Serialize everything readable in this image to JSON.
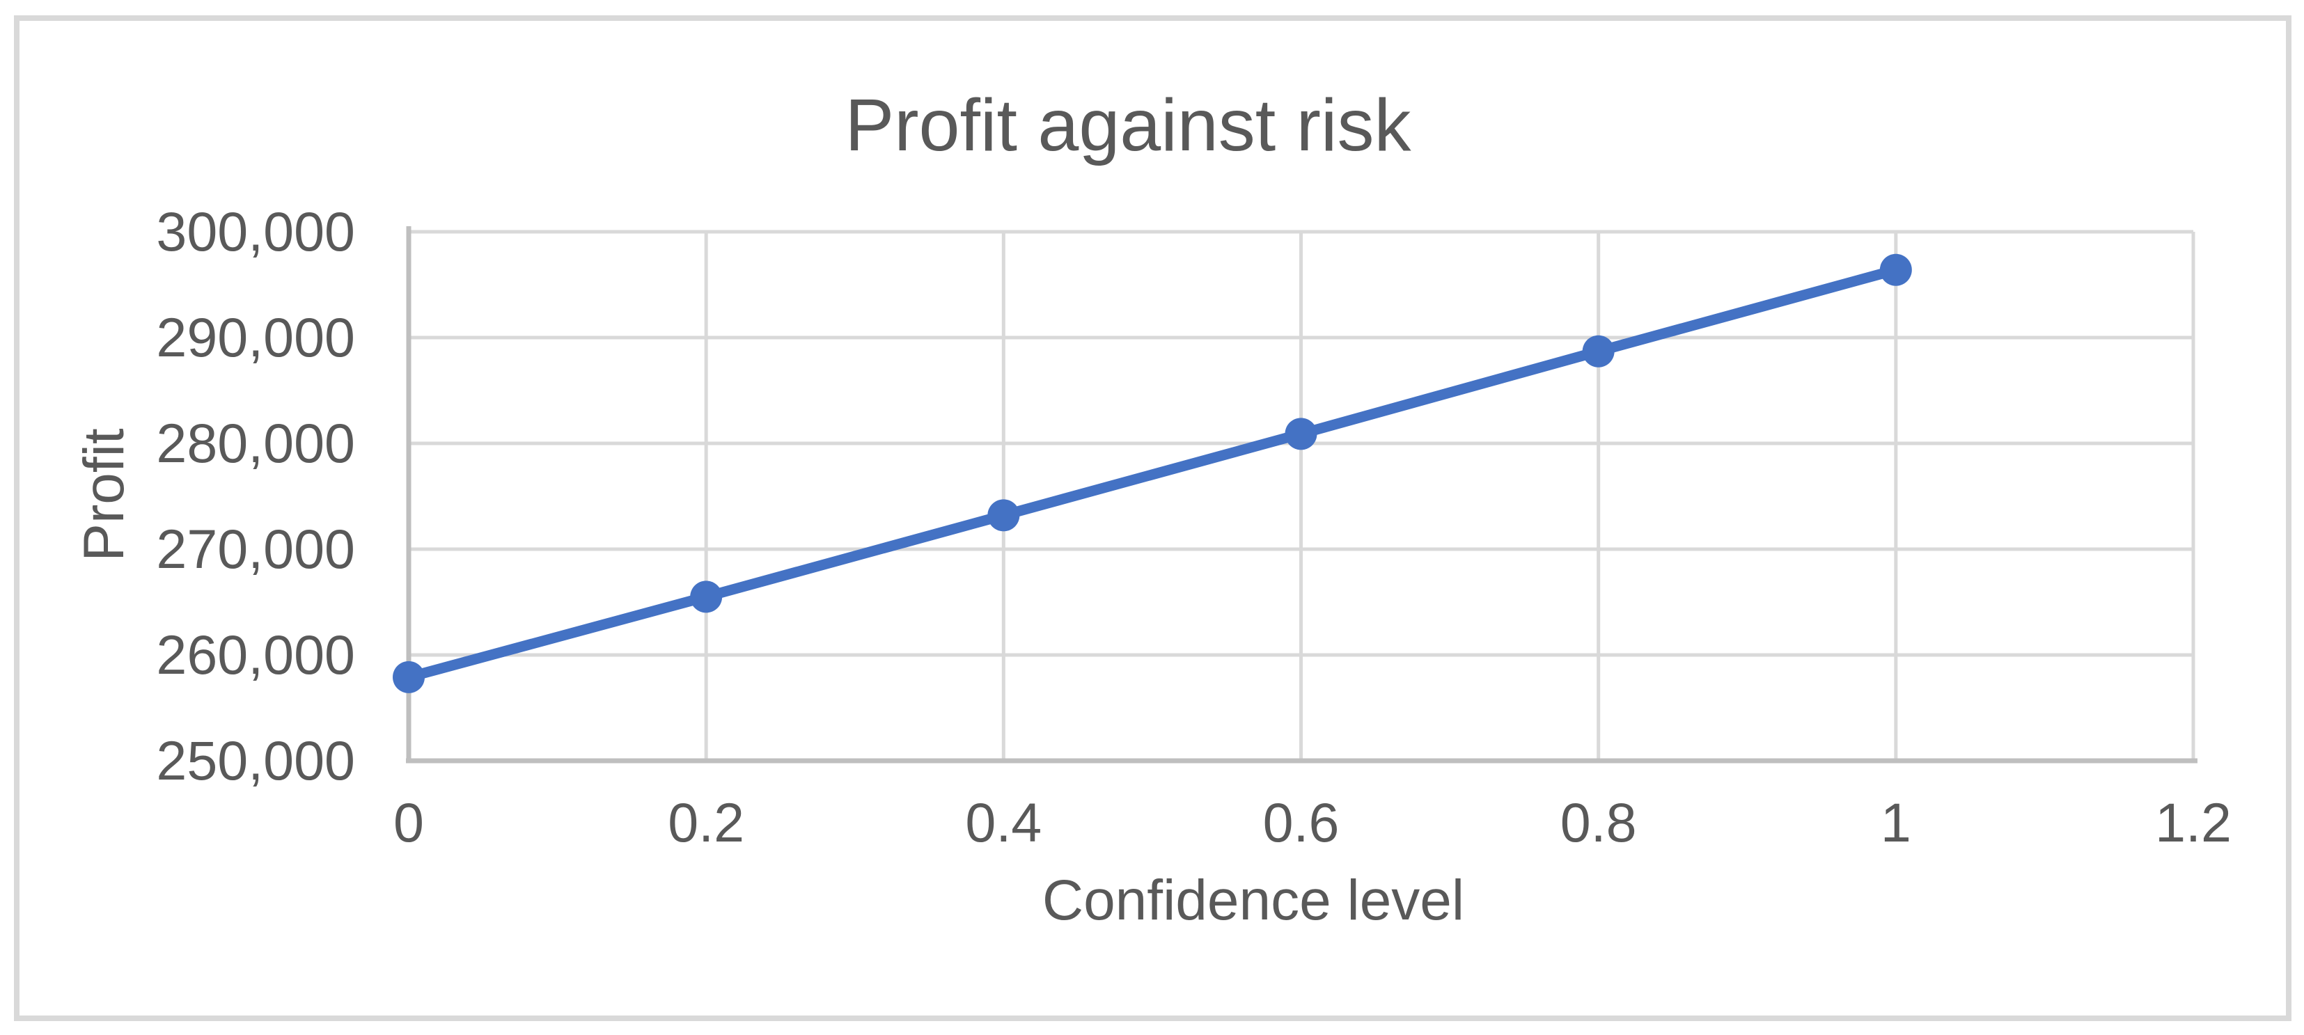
{
  "chart": {
    "title": "Profit against risk",
    "x_axis": {
      "title": "Confidence level",
      "tick_labels": [
        "0",
        "0.2",
        "0.4",
        "0.6",
        "0.8",
        "1",
        "1.2"
      ]
    },
    "y_axis": {
      "title": "Profit",
      "tick_labels": [
        "250,000",
        "260,000",
        "270,000",
        "280,000",
        "290,000",
        "300,000"
      ]
    }
  },
  "chart_data": {
    "type": "line",
    "title": "Profit against risk",
    "xlabel": "Confidence level",
    "ylabel": "Profit",
    "x": [
      0,
      0.2,
      0.4,
      0.6,
      0.8,
      1.0
    ],
    "series": [
      {
        "name": "Profit",
        "values": [
          257900,
          265500,
          273200,
          280900,
          288700,
          296400
        ]
      }
    ],
    "xlim": [
      0,
      1.2
    ],
    "ylim": [
      250000,
      300000
    ],
    "x_ticks": [
      0,
      0.2,
      0.4,
      0.6,
      0.8,
      1,
      1.2
    ],
    "y_ticks": [
      250000,
      260000,
      270000,
      280000,
      290000,
      300000
    ],
    "grid": true,
    "marker": "circle",
    "line_style": "straight",
    "legend": false
  },
  "colors": {
    "line": "#4472C4",
    "marker": "#4472C4",
    "text": "#595959",
    "gridline": "#D9D9D9",
    "axis": "#BFBFBF",
    "border": "#D9D9D9",
    "background": "#FFFFFF"
  }
}
